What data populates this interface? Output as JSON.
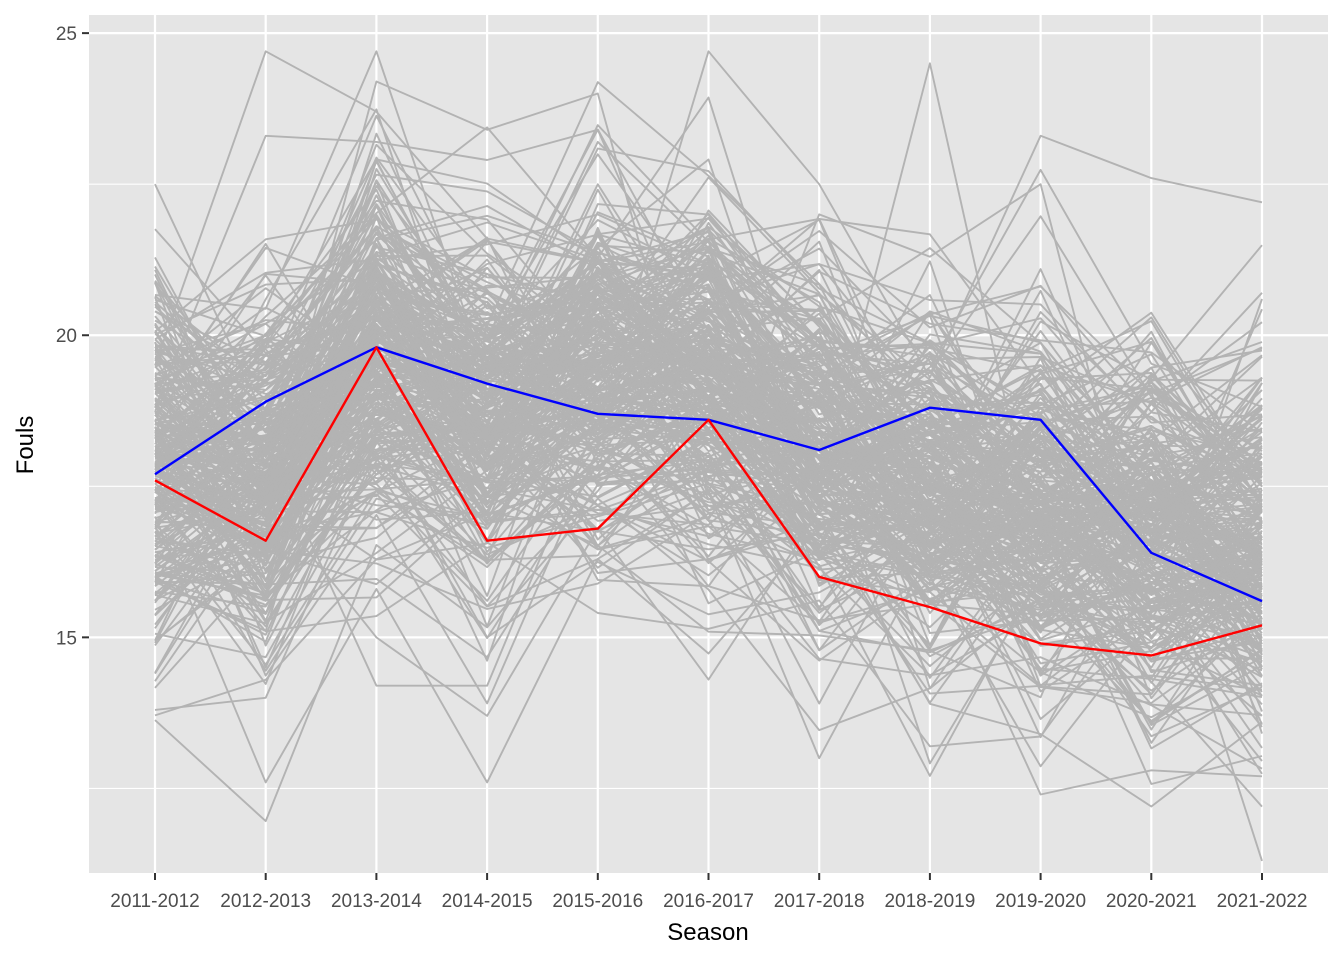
{
  "chart_data": {
    "type": "line",
    "xlabel": "Season",
    "ylabel": "Fouls",
    "categories": [
      "2011-2012",
      "2012-2013",
      "2013-2014",
      "2014-2015",
      "2015-2016",
      "2016-2017",
      "2017-2018",
      "2018-2019",
      "2019-2020",
      "2020-2021",
      "2021-2022"
    ],
    "ylim": [
      11.1,
      25.3
    ],
    "yticks": [
      15,
      20,
      25
    ],
    "grid": true,
    "legend": "none",
    "colors": {
      "panel": "#e5e5e5",
      "grid": "#ffffff",
      "background_series": "#b3b3b3",
      "highlight_blue": "#0000ff",
      "highlight_red": "#ff0000"
    },
    "background_series_count": 300,
    "background_series_sample": [
      {
        "values": [
          22.5,
          18.6,
          19.6,
          17.2,
          18.9,
          19.1,
          18.2,
          19.4,
          18.0,
          17.5,
          16.4
        ]
      },
      {
        "values": [
          13.8,
          14.0,
          18.1,
          19.3,
          20.6,
          19.3,
          17.8,
          16.6,
          17.3,
          17.2,
          14.6
        ]
      },
      {
        "values": [
          19.5,
          24.7,
          23.7,
          21.6,
          18.8,
          20.4,
          18.2,
          16.4,
          15.1,
          17.1,
          17.9
        ]
      },
      {
        "values": [
          17.0,
          12.6,
          15.8,
          12.6,
          16.3,
          17.4,
          13.0,
          16.4,
          12.4,
          12.8,
          12.7
        ]
      },
      {
        "values": [
          18.8,
          23.3,
          23.2,
          22.9,
          23.4,
          19.2,
          17.4,
          24.5,
          16.3,
          17.0,
          11.3
        ]
      },
      {
        "values": [
          15.6,
          18.2,
          14.2,
          14.2,
          18.6,
          24.7,
          22.5,
          19.3,
          23.3,
          22.6,
          22.2
        ]
      },
      {
        "values": [
          14.4,
          17.3,
          15.0,
          13.7,
          16.8,
          14.3,
          17.1,
          13.9,
          13.4,
          12.2,
          13.6
        ]
      },
      {
        "values": [
          20.2,
          17.3,
          24.2,
          23.4,
          24.0,
          17.4,
          22.0,
          21.3,
          22.5,
          15.4,
          20.6
        ]
      }
    ],
    "series": [
      {
        "color": "#0000ff",
        "values": [
          17.7,
          18.9,
          19.8,
          19.2,
          18.7,
          18.6,
          18.1,
          18.8,
          18.6,
          16.4,
          15.6
        ]
      },
      {
        "color": "#ff0000",
        "values": [
          17.6,
          16.6,
          19.8,
          16.6,
          16.8,
          18.6,
          16.0,
          15.5,
          14.9,
          14.7,
          15.2
        ]
      }
    ]
  }
}
